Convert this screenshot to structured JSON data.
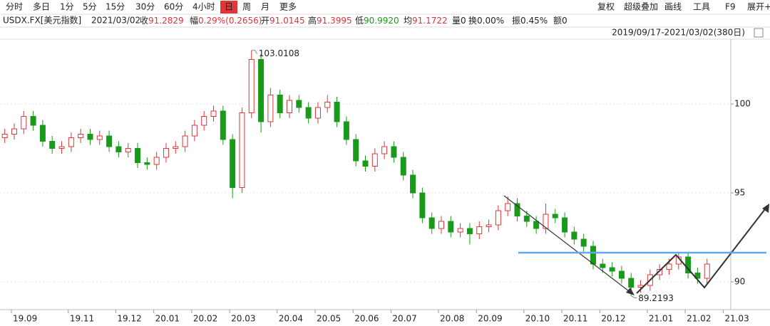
{
  "toolbar": {
    "tabs": [
      "分时",
      "多日",
      "1分",
      "5分",
      "15分",
      "30分",
      "60分",
      "4小时",
      "日",
      "周",
      "月",
      "更多"
    ],
    "active_index": 8,
    "tools": [
      "复权",
      "超级叠加",
      "画线",
      "工具",
      "F9",
      "展开+"
    ]
  },
  "quote": {
    "symbol": "USDX.FX[美元指数]",
    "date": "2021/03/02",
    "items": [
      {
        "label": "收",
        "value": "91.2829",
        "color": "#e0353a"
      },
      {
        "label": "幅",
        "value": "0.29%(0.2656)",
        "color": "#e0353a"
      },
      {
        "label": "开",
        "value": "91.0145",
        "color": "#e0353a"
      },
      {
        "label": "高",
        "value": "91.3995",
        "color": "#e0353a"
      },
      {
        "label": "低",
        "value": "90.9920",
        "color": "#1a9a1a"
      },
      {
        "label": "均",
        "value": "91.1722",
        "color": "#e0353a"
      },
      {
        "label": "量",
        "value": "0",
        "color": "#222222"
      },
      {
        "label": "换",
        "value": "0.00%",
        "color": "#222222"
      },
      {
        "label": "振",
        "value": "0.45%",
        "color": "#222222"
      },
      {
        "label": "额",
        "value": "0",
        "color": "#222222"
      }
    ],
    "range": "2019/09/17-2021/03/02(380日)"
  },
  "chart_data": {
    "type": "candlestick",
    "up_color": "#e0353a",
    "down_color": "#1a9a1a",
    "categories": [
      null,
      "19.09",
      null,
      null,
      null,
      null,
      null,
      "19.11",
      null,
      null,
      null,
      null,
      "19.12",
      null,
      null,
      null,
      "20.01",
      null,
      null,
      null,
      "20.02",
      null,
      null,
      null,
      "20.03",
      null,
      null,
      null,
      null,
      "20.04",
      null,
      null,
      null,
      "20.05",
      null,
      null,
      null,
      "20.06",
      null,
      null,
      null,
      "20.07",
      null,
      null,
      null,
      null,
      "20.08",
      null,
      null,
      null,
      "20.09",
      null,
      null,
      null,
      null,
      "20.10",
      null,
      null,
      null,
      "20.11",
      null,
      null,
      null,
      "20.12",
      null,
      null,
      null,
      null,
      "21.01",
      null,
      null,
      null,
      "21.02",
      null,
      null,
      null,
      "21.03"
    ],
    "open": [
      98.1,
      98.3,
      98.6,
      99.3,
      98.8,
      97.9,
      97.5,
      97.6,
      98.1,
      98.3,
      98.0,
      98.2,
      97.6,
      97.3,
      97.5,
      96.7,
      96.6,
      97.0,
      97.5,
      97.6,
      98.2,
      98.8,
      99.3,
      99.6,
      98.0,
      95.3,
      99.5,
      102.5,
      99.0,
      100.5,
      99.5,
      100.2,
      99.8,
      99.2,
      99.8,
      100.1,
      99.0,
      98.0,
      96.8,
      96.5,
      97.2,
      97.6,
      97.0,
      96.0,
      95.0,
      93.6,
      93.0,
      93.4,
      92.8,
      93.0,
      92.7,
      93.1,
      93.2,
      94.0,
      94.4,
      93.7,
      93.4,
      93.0,
      93.8,
      93.6,
      92.8,
      92.4,
      92.0,
      91.0,
      90.8,
      90.6,
      90.2,
      89.7,
      89.8,
      90.4,
      90.7,
      91.0,
      91.4,
      90.5,
      90.2,
      null,
      null
    ],
    "high": [
      98.6,
      98.9,
      99.6,
      99.6,
      99.1,
      98.2,
      97.9,
      98.4,
      98.6,
      98.6,
      98.5,
      98.5,
      97.9,
      97.8,
      97.8,
      97.0,
      97.3,
      97.8,
      97.9,
      98.5,
      99.1,
      99.6,
      99.9,
      99.9,
      98.3,
      99.8,
      103.0108,
      102.8,
      100.9,
      100.8,
      100.5,
      100.5,
      100.1,
      100.1,
      100.5,
      100.4,
      99.3,
      98.3,
      97.1,
      97.5,
      97.9,
      97.9,
      97.3,
      96.3,
      95.3,
      93.9,
      93.7,
      93.7,
      93.3,
      93.3,
      93.4,
      93.5,
      94.3,
      94.8,
      94.7,
      94.0,
      93.7,
      94.4,
      94.1,
      93.9,
      93.1,
      92.7,
      92.3,
      91.3,
      91.1,
      90.9,
      90.5,
      90.1,
      90.7,
      91.0,
      91.3,
      91.7,
      91.7,
      90.8,
      91.3,
      null,
      null
    ],
    "low": [
      97.8,
      98.0,
      98.3,
      98.5,
      97.6,
      97.2,
      97.2,
      97.3,
      97.8,
      97.7,
      97.7,
      97.3,
      97.0,
      97.0,
      96.4,
      96.3,
      96.3,
      96.7,
      97.2,
      97.3,
      97.9,
      98.5,
      99.0,
      97.7,
      94.7,
      95.0,
      99.2,
      98.4,
      98.7,
      99.2,
      99.2,
      99.5,
      98.9,
      98.9,
      99.5,
      98.7,
      97.7,
      96.5,
      96.2,
      96.2,
      96.9,
      96.7,
      95.7,
      94.7,
      93.3,
      92.7,
      92.7,
      92.5,
      92.5,
      92.1,
      92.4,
      92.8,
      92.9,
      93.7,
      93.4,
      93.1,
      92.7,
      92.7,
      93.3,
      92.5,
      92.1,
      91.7,
      90.7,
      90.5,
      90.3,
      89.9,
      89.2193,
      89.4,
      89.5,
      90.1,
      90.4,
      90.7,
      90.2,
      89.9,
      89.9,
      null,
      null
    ],
    "close": [
      98.3,
      98.6,
      99.3,
      98.8,
      97.9,
      97.5,
      97.6,
      98.1,
      98.3,
      98.0,
      98.2,
      97.6,
      97.3,
      97.5,
      96.7,
      96.6,
      97.0,
      97.5,
      97.6,
      98.2,
      98.8,
      99.3,
      99.6,
      98.0,
      95.3,
      99.5,
      102.5,
      99.0,
      100.5,
      99.5,
      100.2,
      99.8,
      99.2,
      99.8,
      100.1,
      99.0,
      98.0,
      96.8,
      96.5,
      97.2,
      97.6,
      97.0,
      96.0,
      95.0,
      93.6,
      93.0,
      93.4,
      92.8,
      93.0,
      92.7,
      93.1,
      93.2,
      94.0,
      94.4,
      93.7,
      93.4,
      93.0,
      93.8,
      93.6,
      92.8,
      92.4,
      92.0,
      91.0,
      90.8,
      90.6,
      90.2,
      89.7,
      89.8,
      90.4,
      90.7,
      91.0,
      91.4,
      90.5,
      90.2,
      91.0,
      null,
      null
    ],
    "ylim": [
      88.44,
      103.64
    ],
    "yticks": [
      90,
      95,
      100
    ],
    "grid": true
  }
}
